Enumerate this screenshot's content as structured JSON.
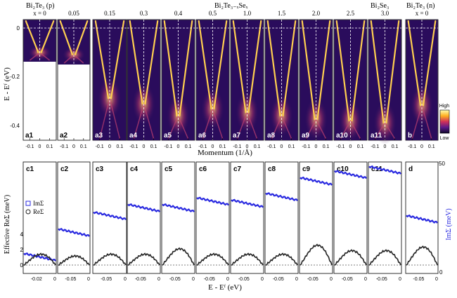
{
  "figure": {
    "top_headers": {
      "left_material": "Bi₂Te₃ (p)",
      "mid_material": "Bi₂Te₃₋ₓSeₓ",
      "right_se": "Bi₂Se₃",
      "right_n": "Bi₂Te₃ (n)"
    },
    "x_values": [
      "x = 0",
      "0.05",
      "0.15",
      "0.3",
      "0.4",
      "0.5",
      "1.0",
      "1.5",
      "2.0",
      "2.5",
      "3.0",
      "x = 0"
    ],
    "top_panel_labels": [
      "a1",
      "a2",
      "a3",
      "a4",
      "a5",
      "a6",
      "a7",
      "a8",
      "a9",
      "a10",
      "a11",
      "b"
    ],
    "bottom_panel_labels": [
      "c1",
      "c2",
      "c3",
      "c4",
      "c5",
      "c6",
      "c7",
      "c8",
      "c9",
      "c10",
      "c11",
      "d"
    ],
    "top_ylabel": "E - Eᶠ (eV)",
    "top_yticks": [
      "0",
      "-0.2",
      "-0.4"
    ],
    "top_xtick_labels": [
      "-0.1",
      "0",
      "0.1"
    ],
    "top_xlabel": "Momentum (1/Å)",
    "colorbar": {
      "high": "High",
      "low": "Low"
    },
    "bottom_ylabel_left": "Effective ReΣ (meV)",
    "bottom_ylabel_right": "ImΣ (meV)",
    "bottom_yticks_left": [
      "0",
      "2",
      "4"
    ],
    "bottom_yticks_right": [
      "0",
      "50"
    ],
    "bottom_xlabel": "E - Eᶠ (eV)",
    "bottom_xtick_c1": [
      "-0.02",
      "0"
    ],
    "bottom_xtick_other": [
      "-0.05",
      "0"
    ],
    "legend": {
      "im": "ImΣ",
      "re": "ReΣ"
    },
    "colors": {
      "im": "#2a2ae0",
      "re": "#222222",
      "dash": "#ffffff"
    },
    "im_levels": [
      0.18,
      0.4,
      0.55,
      0.62,
      0.62,
      0.68,
      0.66,
      0.72,
      0.86,
      0.92,
      0.96,
      0.52
    ],
    "re_peak_levels": [
      0.12,
      0.1,
      0.12,
      0.12,
      0.18,
      0.12,
      0.12,
      0.12,
      0.22,
      0.16,
      0.16,
      0.2
    ]
  }
}
